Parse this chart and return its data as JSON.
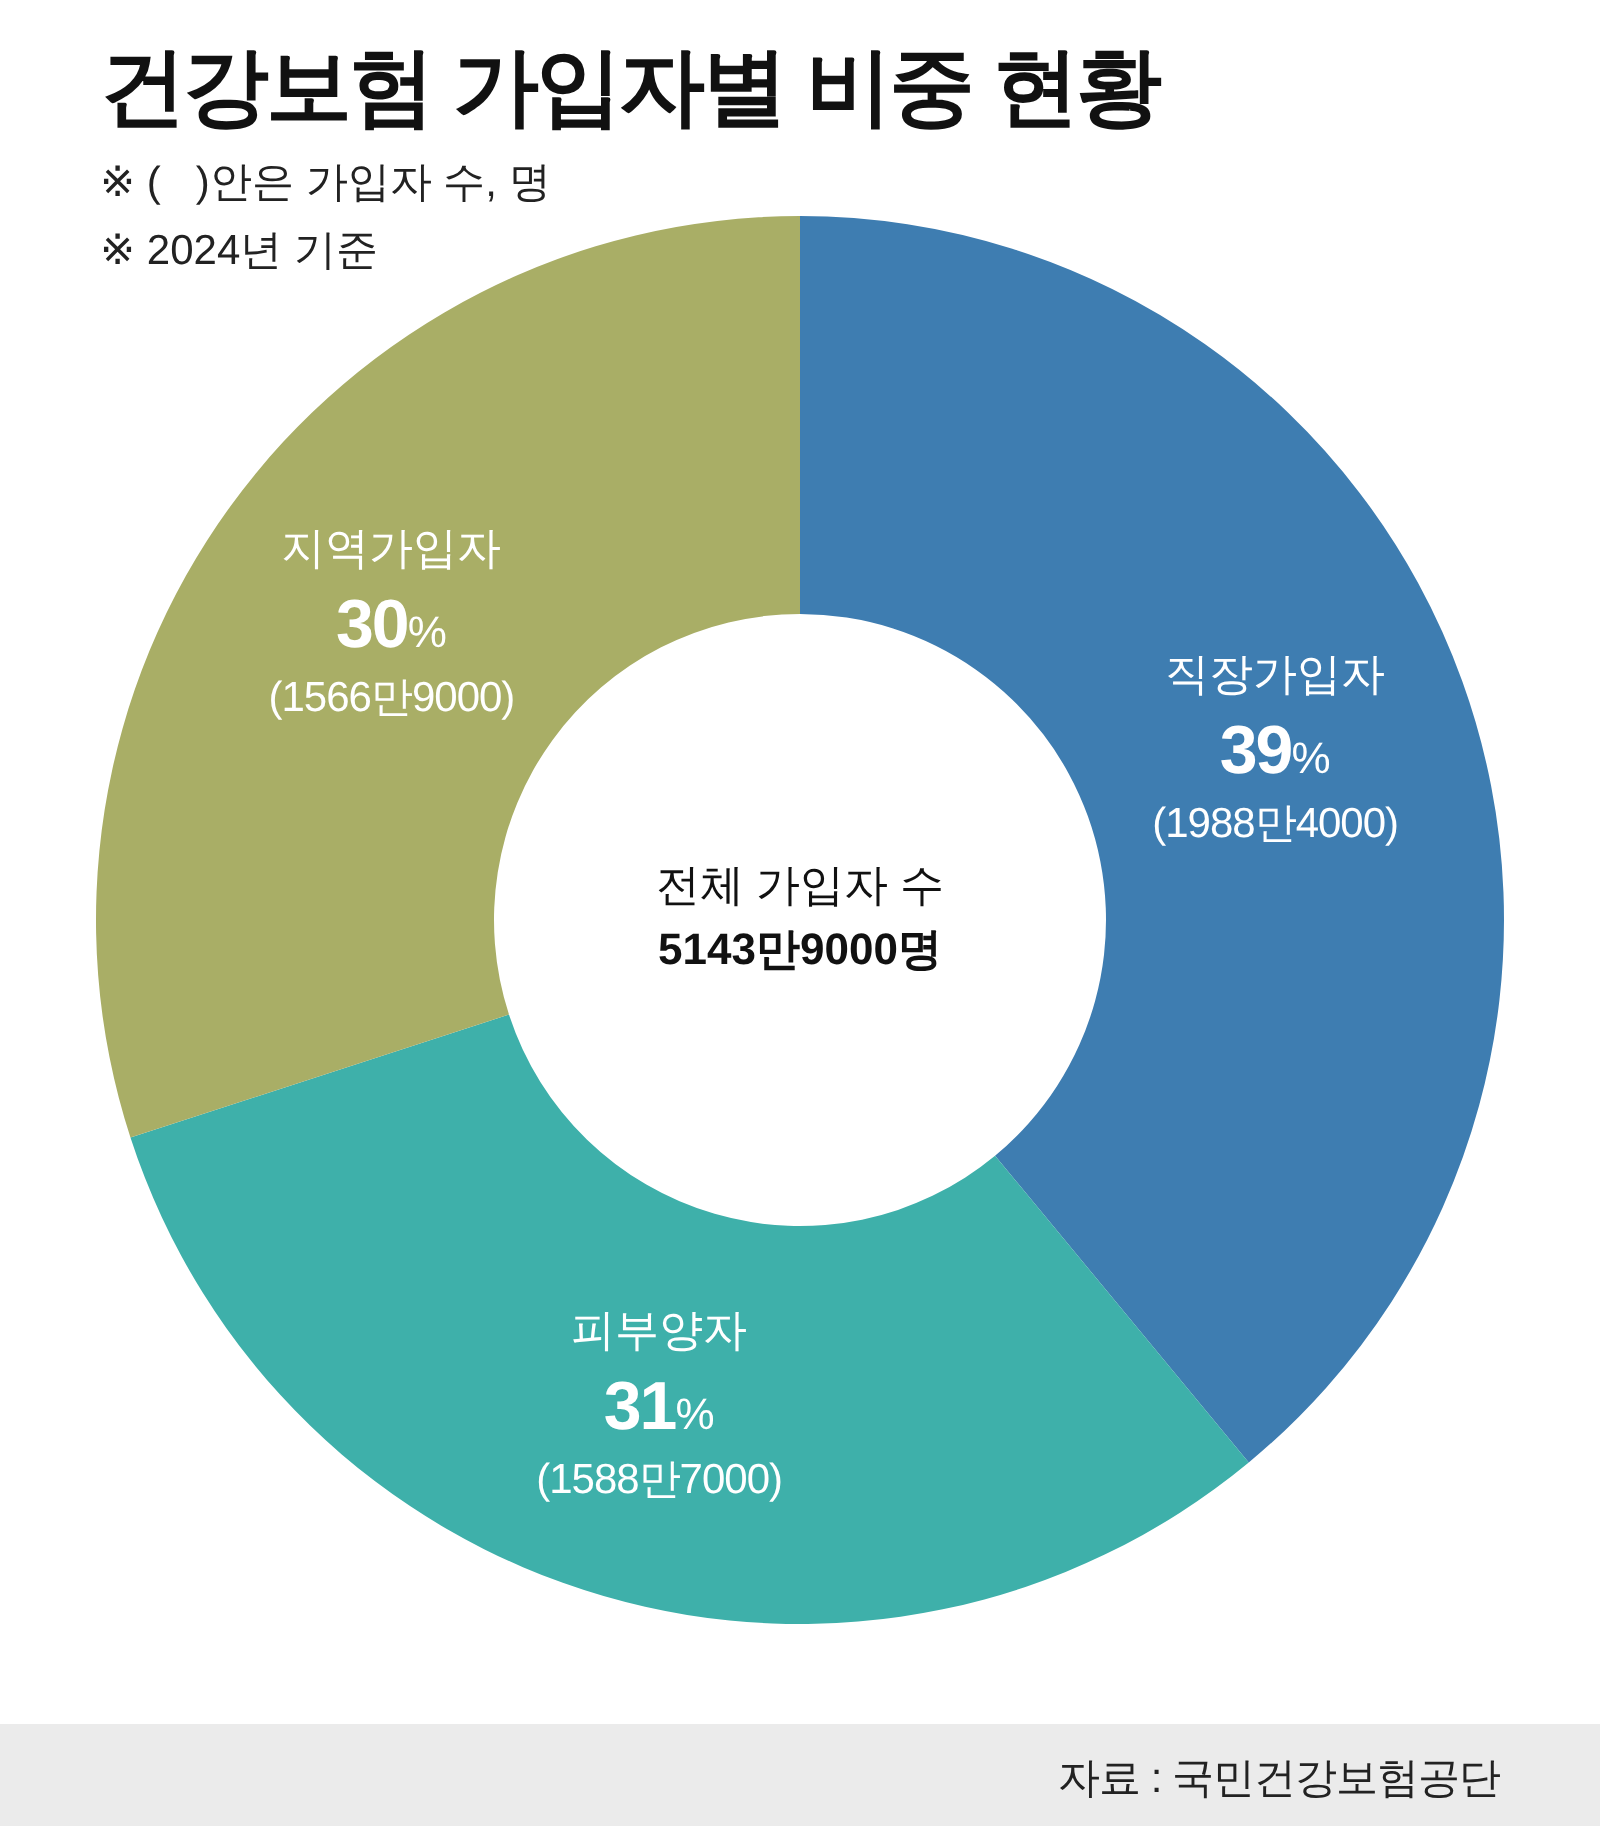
{
  "chart_data": {
    "type": "donut",
    "title": "건강보험 가입자별 비중 현황",
    "subtitle": "※ (   )안은 가입자 수, 명\n※ 2024년 기준",
    "categories": [
      "직장가입자",
      "피부양자",
      "지역가입자"
    ],
    "values": [
      39,
      31,
      30
    ],
    "colors": [
      "#3e7db1",
      "#3eb0aa",
      "#a9ae66"
    ],
    "value_labels": [
      "39%\n(1988만4000)",
      "31%\n(1588만7000)",
      "30%\n(1566만9000)"
    ],
    "annotations": [
      "전체 가입자 수\n5143만9000명",
      "자료 : 국민건강보험공단"
    ]
  }
}
